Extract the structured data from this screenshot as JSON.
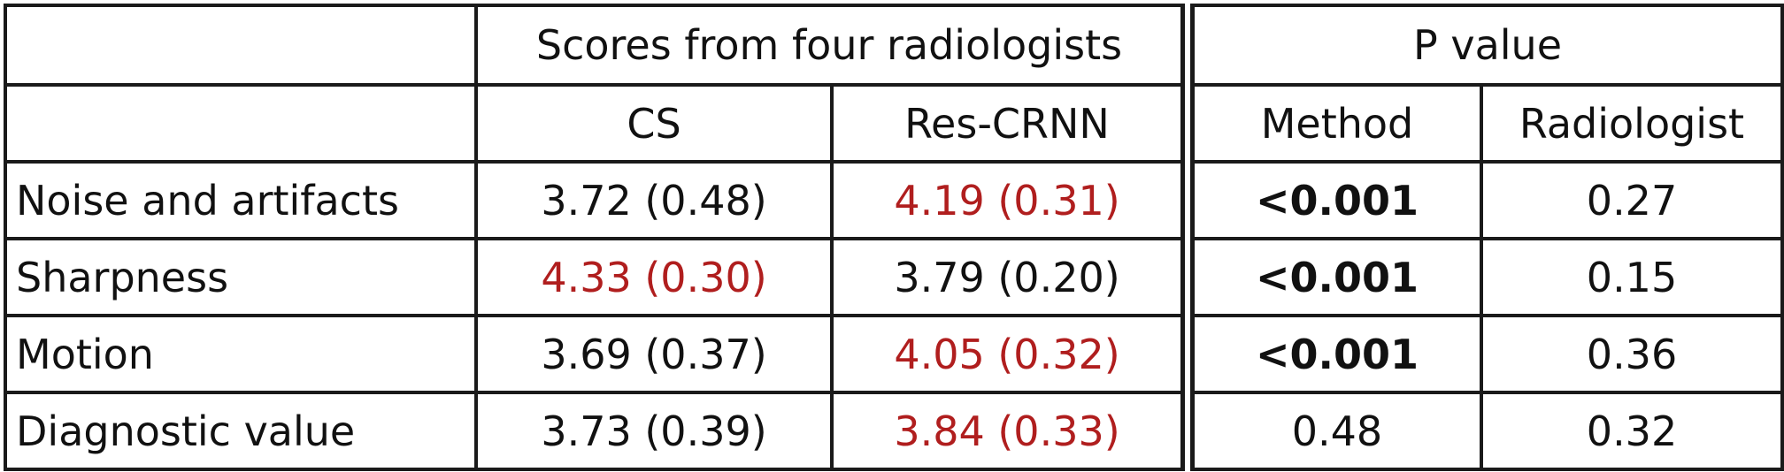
{
  "table": {
    "header": {
      "group_scores": "Scores from four radiologists",
      "group_p": "P value",
      "col_cs": "CS",
      "col_rescrnn": "Res-CRNN",
      "col_method": "Method",
      "col_radiologist": "Radiologist"
    },
    "rows": [
      {
        "label": "Noise and artifacts",
        "cs": "3.72 (0.48)",
        "rescrnn": "4.19 (0.31)",
        "method": "<0.001",
        "radiologist": "0.27"
      },
      {
        "label": "Sharpness",
        "cs": "4.33 (0.30)",
        "rescrnn": "3.79 (0.20)",
        "method": "<0.001",
        "radiologist": "0.15"
      },
      {
        "label": "Motion",
        "cs": "3.69 (0.37)",
        "rescrnn": "4.05 (0.32)",
        "method": "<0.001",
        "radiologist": "0.36"
      },
      {
        "label": "Diagnostic value",
        "cs": "3.73 (0.39)",
        "rescrnn": "3.84 (0.33)",
        "method": "0.48",
        "radiologist": "0.32"
      }
    ],
    "colors": {
      "highlight": "#b01e1e",
      "text": "#111111",
      "border": "#1a1a1a"
    }
  }
}
